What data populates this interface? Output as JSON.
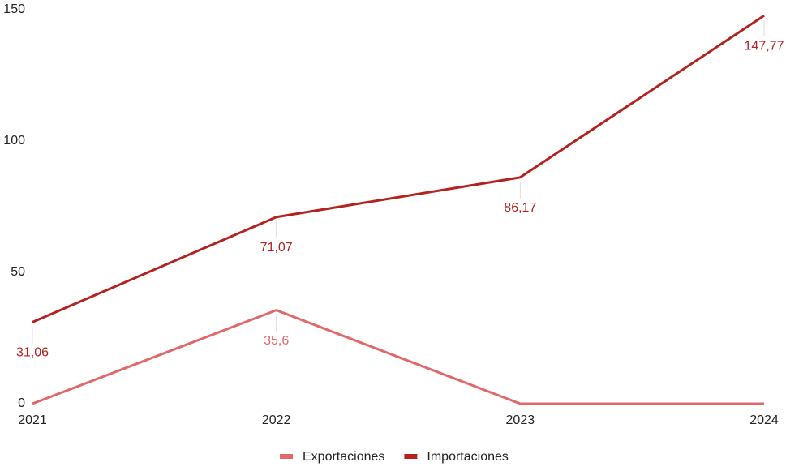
{
  "chart_data": {
    "type": "line",
    "categories": [
      "2021",
      "2022",
      "2023",
      "2024"
    ],
    "series": [
      {
        "name": "Exportaciones",
        "color": "#e06868",
        "values": [
          0,
          35.6,
          0,
          0
        ],
        "value_labels": [
          null,
          "35,6",
          null,
          null
        ]
      },
      {
        "name": "Importaciones",
        "color": "#b3221f",
        "values": [
          31.06,
          71.07,
          86.17,
          147.77
        ],
        "value_labels": [
          "31,06",
          "71,07",
          "86,17",
          "147,77"
        ]
      }
    ],
    "ylim": [
      0,
      150
    ],
    "yticks": [
      0,
      50,
      100,
      150
    ],
    "legend": "bottom"
  }
}
